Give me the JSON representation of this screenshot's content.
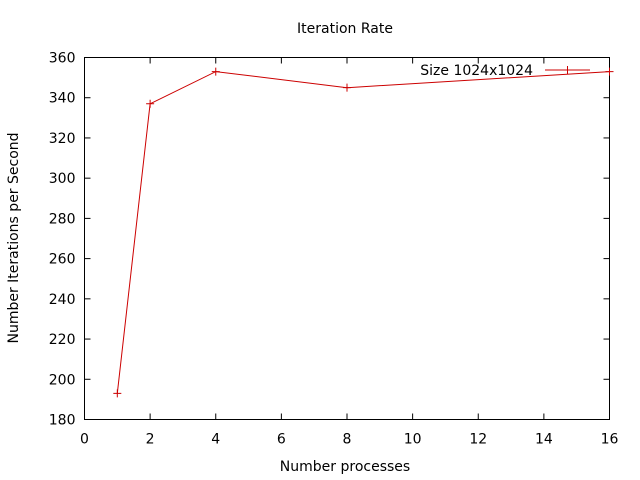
{
  "chart_data": {
    "type": "line",
    "title": "Iteration Rate",
    "xlabel": "Number processes",
    "ylabel": "Number Iterations per Second",
    "xlim": [
      0,
      16
    ],
    "ylim": [
      180,
      360
    ],
    "xticks": [
      0,
      2,
      4,
      6,
      8,
      10,
      12,
      14,
      16
    ],
    "yticks": [
      180,
      200,
      220,
      240,
      260,
      280,
      300,
      320,
      340,
      360
    ],
    "grid": false,
    "legend_position": "top-right",
    "series": [
      {
        "name": "Size 1024x1024",
        "color": "#cc0000",
        "marker": "plus",
        "x": [
          1,
          2,
          4,
          8,
          16
        ],
        "y": [
          193,
          337,
          353,
          345,
          353
        ]
      }
    ]
  }
}
